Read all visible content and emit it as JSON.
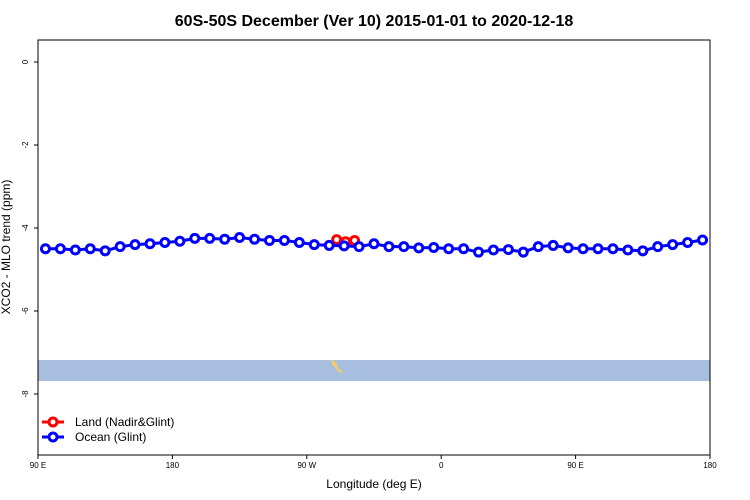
{
  "chart_data": {
    "type": "line",
    "title": "60S-50S December (Ver 10)   2015-01-01 to 2020-12-18",
    "x_label": "Longitude (deg E)",
    "y_label": "XCO2 - MLO trend (ppm)",
    "xlim": [
      90,
      540
    ],
    "ylim": [
      -9.47,
      0.53
    ],
    "xticks": [
      {
        "value": 90,
        "label": "90 E"
      },
      180,
      {
        "value": 270,
        "label": "90 W"
      },
      {
        "value": 360,
        "label": "0"
      },
      {
        "value": 450,
        "label": "90 E"
      },
      {
        "value": 540,
        "label": "180"
      }
    ],
    "yticks": [
      -8,
      -6,
      -4,
      -2,
      0
    ],
    "legend": "bottom-left",
    "series": [
      {
        "name": "Land (Nadir&Glint)",
        "color": "#ff0000",
        "x": [
          290,
          296,
          302
        ],
        "values": [
          -4.28,
          -4.33,
          -4.3
        ]
      },
      {
        "name": "Ocean (Glint)",
        "color": "#0000ff",
        "x": [
          95,
          105,
          115,
          125,
          135,
          145,
          155,
          165,
          175,
          185,
          195,
          205,
          215,
          225,
          235,
          245,
          255,
          265,
          275,
          285,
          295,
          305,
          315,
          325,
          335,
          345,
          355,
          365,
          375,
          385,
          395,
          405,
          415,
          425,
          435,
          445,
          455,
          465,
          475,
          485,
          495,
          505,
          515,
          525,
          535
        ],
        "values": [
          -4.5,
          -4.5,
          -4.53,
          -4.5,
          -4.55,
          -4.45,
          -4.4,
          -4.38,
          -4.35,
          -4.32,
          -4.25,
          -4.25,
          -4.27,
          -4.23,
          -4.27,
          -4.3,
          -4.3,
          -4.35,
          -4.4,
          -4.42,
          -4.43,
          -4.45,
          -4.38,
          -4.45,
          -4.45,
          -4.48,
          -4.47,
          -4.5,
          -4.5,
          -4.58,
          -4.53,
          -4.52,
          -4.58,
          -4.45,
          -4.42,
          -4.48,
          -4.5,
          -4.5,
          -4.5,
          -4.53,
          -4.55,
          -4.45,
          -4.4,
          -4.35,
          -4.29
        ]
      }
    ]
  }
}
